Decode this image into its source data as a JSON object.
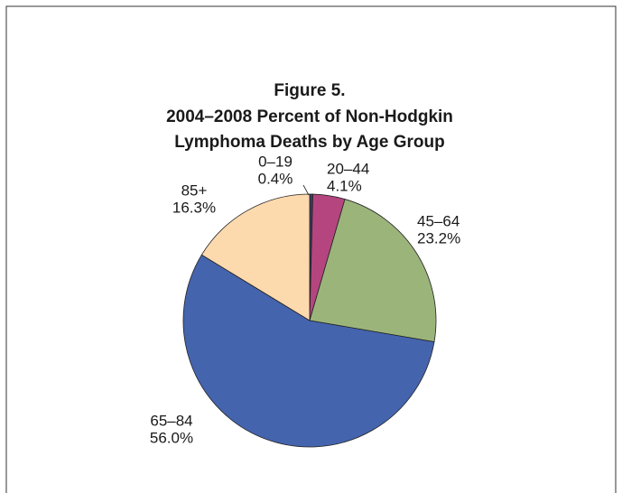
{
  "chart_data": {
    "type": "pie",
    "title": [
      "Figure 5.",
      "2004–2008 Percent of Non-Hodgkin",
      "Lymphoma Deaths by Age Group"
    ],
    "categories": [
      "0–19",
      "20–44",
      "45–64",
      "65–84",
      "85+"
    ],
    "values": [
      0.4,
      4.1,
      23.2,
      56.0,
      16.3
    ],
    "value_labels": [
      "0.4%",
      "4.1%",
      "23.2%",
      "56.0%",
      "16.3%"
    ],
    "colors": [
      "#3b3b5c",
      "#b5457f",
      "#9bb47a",
      "#4564ae",
      "#fdd9ae"
    ]
  }
}
